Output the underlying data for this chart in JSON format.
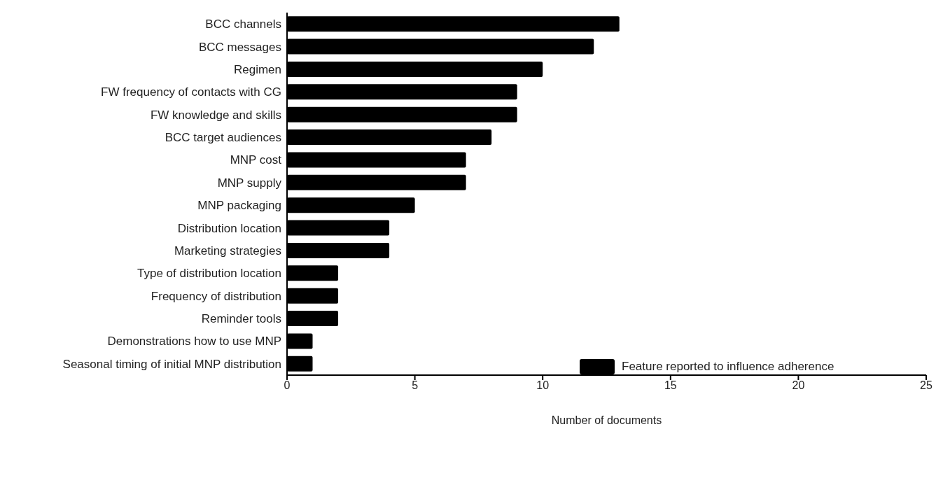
{
  "chart_data": {
    "type": "bar",
    "orientation": "horizontal",
    "xlabel": "Number of documents",
    "categories": [
      "BCC channels",
      "BCC messages",
      "Regimen",
      "FW frequency of contacts with CG",
      "FW knowledge and skills",
      "BCC target audiences",
      "MNP cost",
      "MNP supply",
      "MNP packaging",
      "Distribution location",
      "Marketing strategies",
      "Type of distribution location",
      "Frequency of distribution",
      "Reminder tools",
      "Demonstrations how to use MNP",
      "Seasonal timing of initial MNP distribution"
    ],
    "series": [
      {
        "name": "Feature reported to influence adherence",
        "color": "#000000",
        "values": [
          13,
          12,
          10,
          9,
          9,
          8,
          7,
          7,
          5,
          4,
          4,
          2,
          2,
          2,
          1,
          1
        ]
      }
    ],
    "xlim": [
      0,
      25
    ],
    "xticks": [
      0,
      5,
      10,
      15,
      20,
      25
    ],
    "grid": false,
    "legend": "bottom right"
  }
}
